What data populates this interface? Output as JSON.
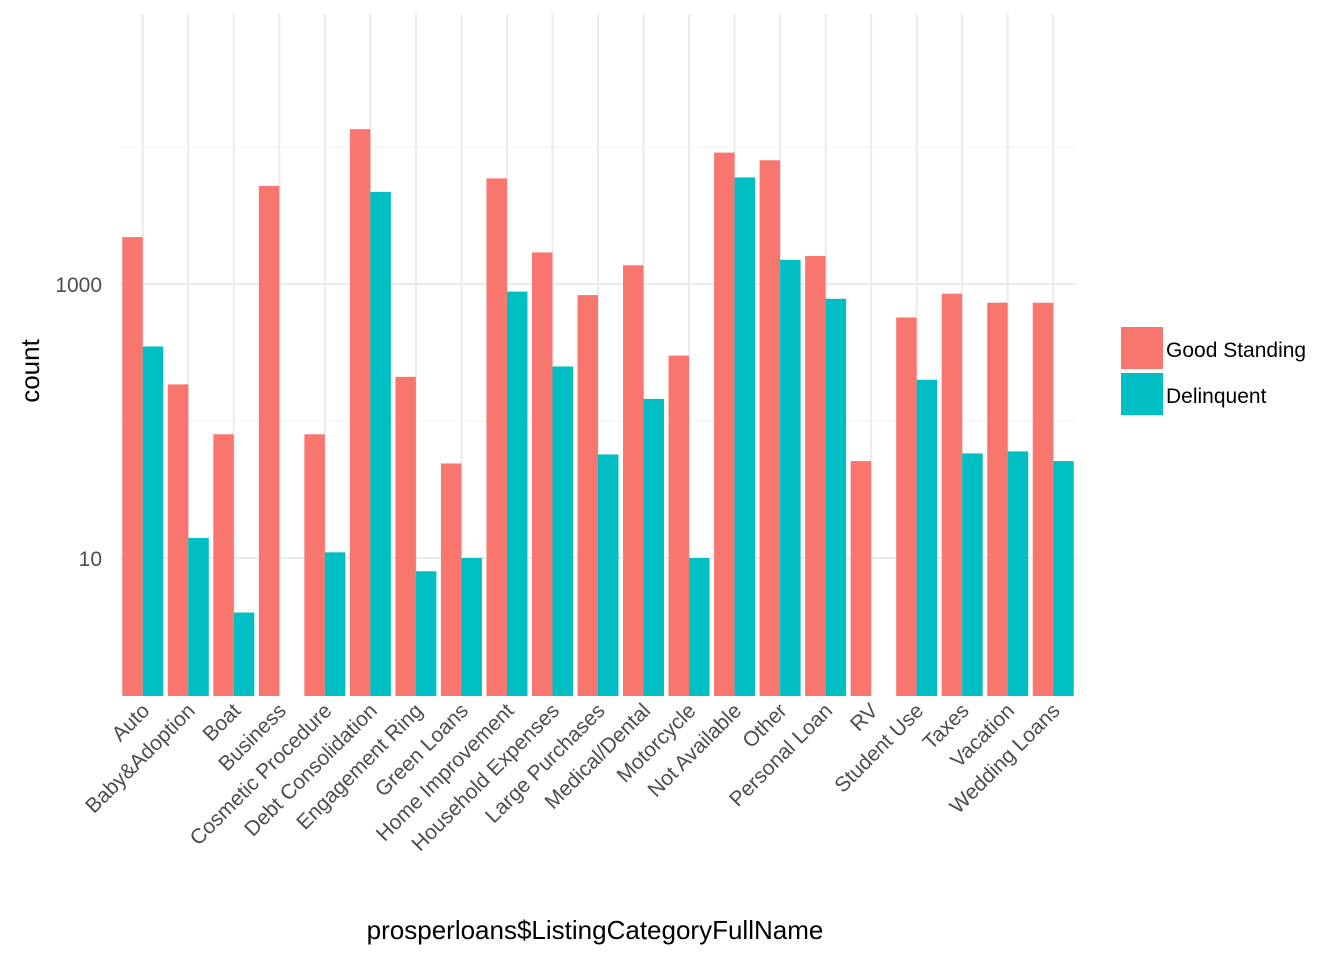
{
  "chart_data": {
    "type": "bar",
    "title": "",
    "xlabel": "prosperloans$ListingCategoryFullName",
    "ylabel": "count",
    "y_scale": "log10",
    "ylim": [
      1,
      15000
    ],
    "y_ticks": [
      10,
      1000
    ],
    "y_tick_labels": [
      "10",
      "1000"
    ],
    "grid": true,
    "legend_position": "right",
    "categories": [
      "Auto",
      "Baby&Adoption",
      "Boat",
      "Business",
      "Cosmetic Procedure",
      "Debt Consolidation",
      "Engagement Ring",
      "Green Loans",
      "Home Improvement",
      "Household Expenses",
      "Large Purchases",
      "Medical/Dental",
      "Motorcycle",
      "Not Available",
      "Other",
      "Personal Loan",
      "RV",
      "Student Use",
      "Taxes",
      "Vacation",
      "Wedding Loans"
    ],
    "series": [
      {
        "name": "Good Standing",
        "color": "#F8766D",
        "values": [
          2200,
          185,
          80,
          5200,
          80,
          13500,
          210,
          49,
          5900,
          1700,
          830,
          1370,
          300,
          9100,
          8000,
          1600,
          51,
          570,
          850,
          730,
          730
        ]
      },
      {
        "name": "Delinquent",
        "color": "#00BFC4",
        "values": [
          350,
          14,
          4,
          null,
          11,
          4700,
          8,
          10,
          880,
          250,
          57,
          145,
          10,
          6000,
          1500,
          780,
          null,
          200,
          58,
          60,
          51
        ]
      }
    ]
  }
}
